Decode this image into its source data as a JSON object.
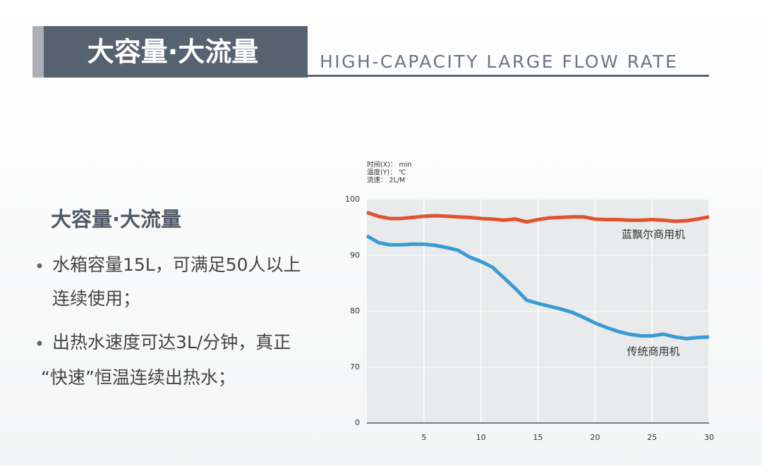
{
  "header": {
    "title": "大容量·大流量",
    "subtitle": "HIGH-CAPACITY LARGE FLOW RATE"
  },
  "feature": {
    "heading": "大容量·大流量",
    "bullets": [
      [
        "水箱容量15L，可满足50人以上",
        "连续使用；"
      ],
      [
        "出热水速度可达3L/分钟，真正",
        "“快速”恒温连续出热水；"
      ]
    ]
  },
  "chart_data": {
    "type": "line",
    "notes": [
      "时间(X)： min",
      "温度(Y)： ℃",
      "流速： 2L/M"
    ],
    "x": [
      0,
      1,
      2,
      3,
      4,
      5,
      6,
      7,
      8,
      9,
      10,
      11,
      12,
      13,
      14,
      15,
      16,
      17,
      18,
      19,
      20,
      21,
      22,
      23,
      24,
      25,
      26,
      27,
      28,
      29,
      30
    ],
    "series": [
      {
        "name": "蓝飘尔商用机",
        "color": "#e0532e",
        "values": [
          97.7,
          97.0,
          96.6,
          96.6,
          96.8,
          97.0,
          97.1,
          97.0,
          96.9,
          96.8,
          96.6,
          96.5,
          96.3,
          96.5,
          96.0,
          96.4,
          96.7,
          96.8,
          96.9,
          96.9,
          96.5,
          96.4,
          96.4,
          96.3,
          96.3,
          96.4,
          96.3,
          96.1,
          96.2,
          96.5,
          96.9
        ]
      },
      {
        "name": "传统商用机",
        "color": "#3a9ad4",
        "values": [
          93.5,
          92.3,
          91.9,
          91.9,
          92.0,
          92.0,
          91.8,
          91.4,
          90.9,
          89.7,
          88.9,
          87.9,
          86.0,
          84.1,
          82.0,
          81.4,
          80.9,
          80.4,
          79.8,
          78.9,
          77.9,
          77.1,
          76.4,
          75.9,
          75.6,
          75.6,
          75.9,
          75.4,
          75.1,
          75.3,
          75.4
        ]
      }
    ],
    "xlim": [
      0,
      30
    ],
    "xticks": [
      5,
      10,
      15,
      20,
      25,
      30
    ],
    "ylim": [
      0,
      100
    ],
    "yticks": [
      0,
      70,
      80,
      90,
      100
    ],
    "broken_axis": true,
    "grid": true
  }
}
